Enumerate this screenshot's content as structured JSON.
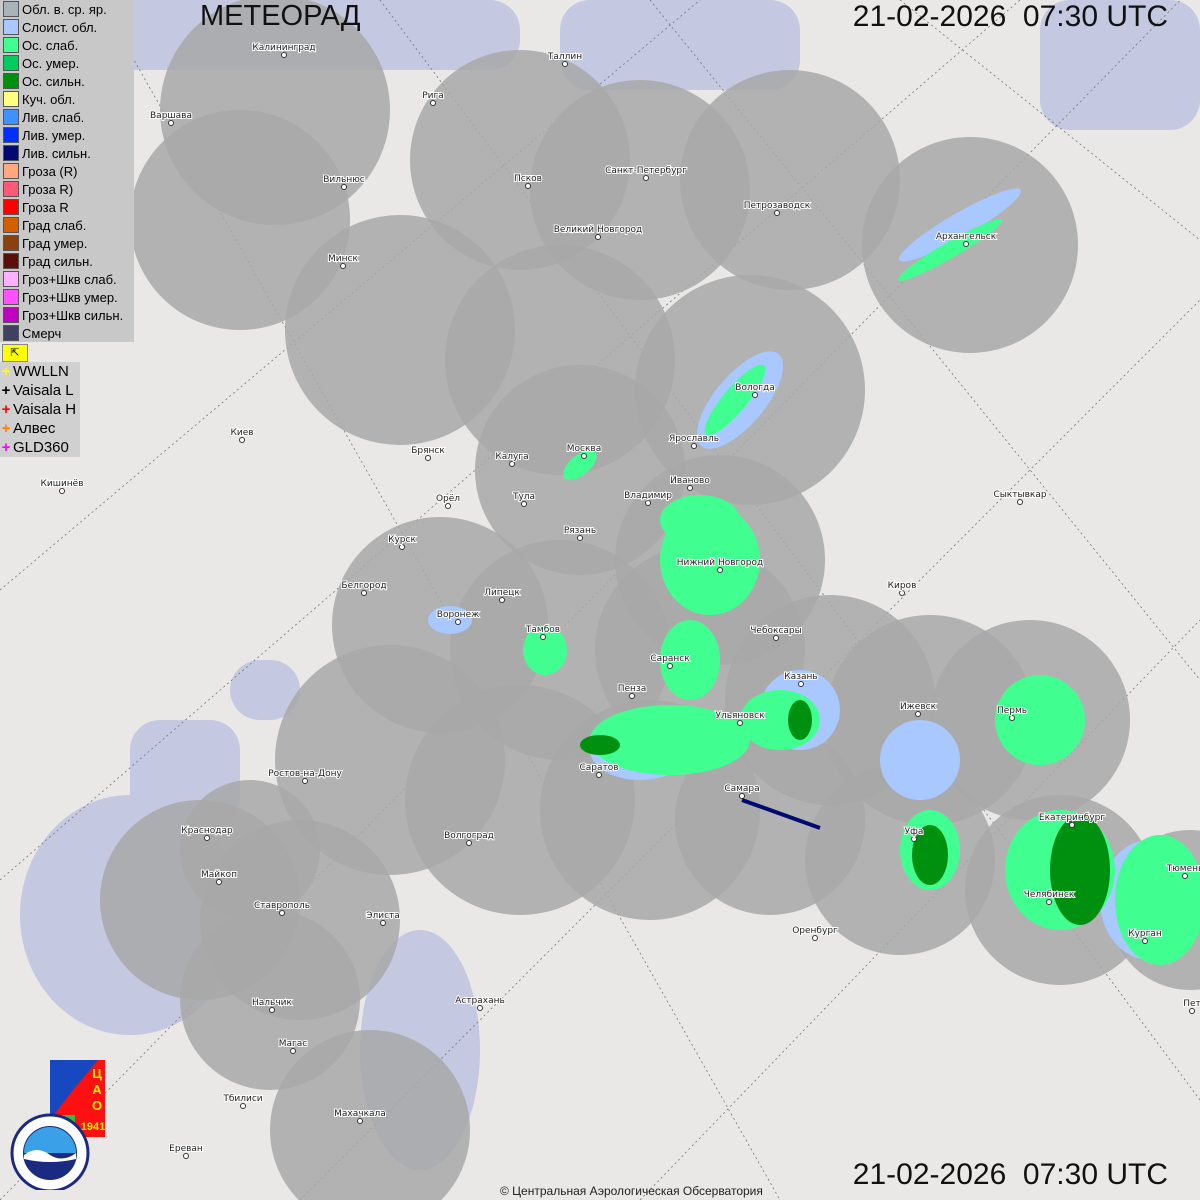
{
  "header": {
    "title": "МЕТЕОРАД",
    "timestamp_top": "21-02-2026  07:30 UTC",
    "timestamp_bottom": "21-02-2026  07:30 UTC"
  },
  "legend": {
    "items": [
      {
        "label": "Обл. в. ср. яр.",
        "color": "#a8b4b8"
      },
      {
        "label": "Слоист. обл.",
        "color": "#a8c8ff"
      },
      {
        "label": "Ос. слаб.",
        "color": "#40ff90"
      },
      {
        "label": "Ос. умер.",
        "color": "#00cc60"
      },
      {
        "label": "Ос. сильн.",
        "color": "#009010"
      },
      {
        "label": "Куч. обл.",
        "color": "#ffff80"
      },
      {
        "label": "Лив. слаб.",
        "color": "#4090ff"
      },
      {
        "label": "Лив. умер.",
        "color": "#0030ff"
      },
      {
        "label": "Лив. сильн.",
        "color": "#000a70"
      },
      {
        "label": "Гроза (R)",
        "color": "#ffa880"
      },
      {
        "label": "Гроза R)",
        "color": "#ff5878"
      },
      {
        "label": "Гроза R",
        "color": "#ff0000"
      },
      {
        "label": "Град слаб.",
        "color": "#d06000"
      },
      {
        "label": "Град умер.",
        "color": "#8a4010"
      },
      {
        "label": "Град сильн.",
        "color": "#581008"
      },
      {
        "label": "Гроз+Шкв слаб.",
        "color": "#ffb0ff"
      },
      {
        "label": "Гроз+Шкв умер.",
        "color": "#ff50ff"
      },
      {
        "label": "Гроз+Шкв сильн.",
        "color": "#c000c0"
      },
      {
        "label": "Смерч",
        "color": "#404060"
      }
    ],
    "arrow_icon": "arrow-up-left-icon",
    "lightning": [
      {
        "label": "WWLLN",
        "color": "#ffff00"
      },
      {
        "label": "Vaisala L",
        "color": "#000000"
      },
      {
        "label": "Vaisala H",
        "color": "#ff0000"
      },
      {
        "label": "Алвес",
        "color": "#ff8000"
      },
      {
        "label": "GLD360",
        "color": "#ff00ff"
      }
    ]
  },
  "cities": [
    "Калининград",
    "Таллин",
    "Рига",
    "Варшава",
    "Санкт-Петербург",
    "Псков",
    "Вильнюс",
    "Петрозаводск",
    "Великий Новгород",
    "Архангельск",
    "Минск",
    "Вологда",
    "Москва",
    "Ярославль",
    "Киев",
    "Брянск",
    "Калуга",
    "Иваново",
    "Кишинёв",
    "Орёл",
    "Тула",
    "Владимир",
    "Сыктывкар",
    "Рязань",
    "Курск",
    "Нижний Новгород",
    "Белгород",
    "Киров",
    "Липецк",
    "Воронеж",
    "Тамбов",
    "Чебоксары",
    "Саранск",
    "Казань",
    "Пенза",
    "Ижевск",
    "Пермь",
    "Ульяновск",
    "Саратов",
    "Ростов-на-Дону",
    "Самара",
    "Екатеринбург",
    "Краснодар",
    "Уфа",
    "Волгоград",
    "Тюмень",
    "Майкоп",
    "Челябинск",
    "Ставрополь",
    "Элиста",
    "Оренбург",
    "Курган",
    "Астрахань",
    "Нальчик",
    "Магас",
    "Тбилиси",
    "Махачкала",
    "Ереван",
    "Пет"
  ],
  "logos": {
    "cao": "ЦАО 1941",
    "roshydromet": "РОСГИДРОМЕТ ROSHYDROMET"
  },
  "credit": "© Центральная Аэрологическая Обсерватория",
  "colors": {
    "coverage": "#a8a8a8",
    "land": "#e9e8e6",
    "water": "#c4c8e0",
    "precip_light": "#40ff90",
    "precip_strong": "#009010",
    "stratus": "#a8c8ff"
  }
}
